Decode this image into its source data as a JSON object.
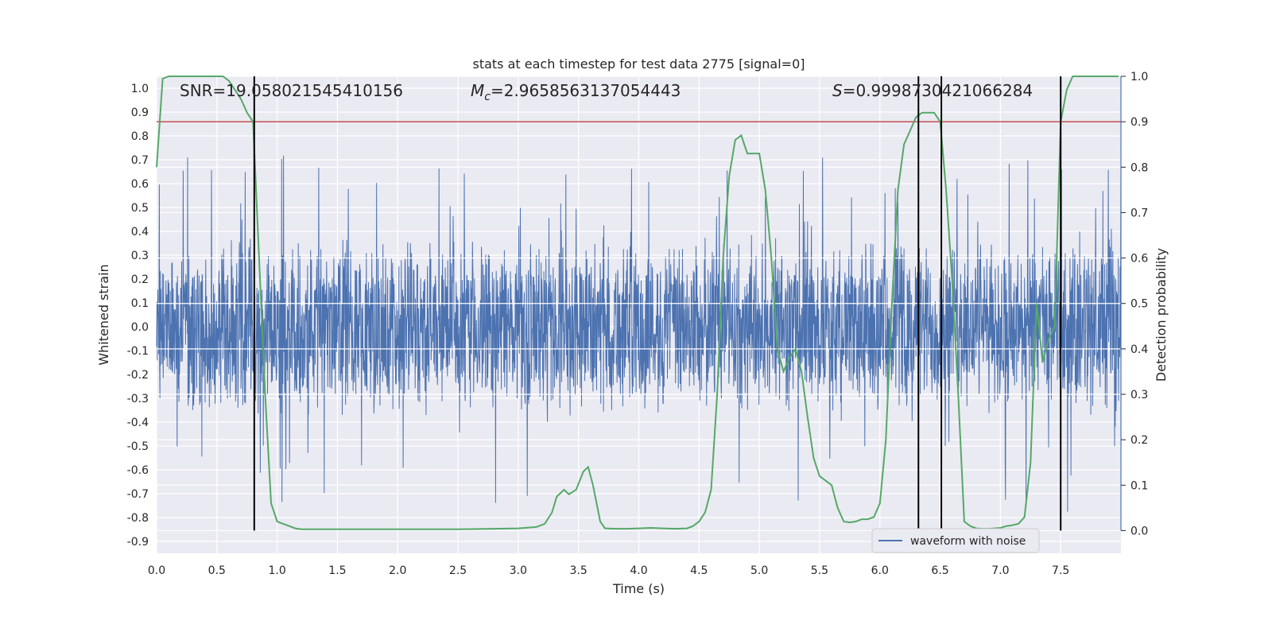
{
  "chart_data": {
    "type": "line",
    "title": "stats at each timestep for test data 2775 [signal=0]",
    "xlabel": "Time (s)",
    "ylabel": "Whitened strain",
    "ylabel_right": "Detection probability",
    "xlim": [
      0.0,
      8.0
    ],
    "ylim": [
      -0.95,
      1.05
    ],
    "ylim_right": [
      -0.05,
      1.0
    ],
    "x_ticks": [
      "0.0",
      "0.5",
      "1.0",
      "1.5",
      "2.0",
      "2.5",
      "3.0",
      "3.5",
      "4.0",
      "4.5",
      "5.0",
      "5.5",
      "6.0",
      "6.5",
      "7.0",
      "7.5"
    ],
    "x_tick_values": [
      0.0,
      0.5,
      1.0,
      1.5,
      2.0,
      2.5,
      3.0,
      3.5,
      4.0,
      4.5,
      5.0,
      5.5,
      6.0,
      6.5,
      7.0,
      7.5
    ],
    "y_ticks": [
      "1.0",
      "0.9",
      "0.8",
      "0.7",
      "0.6",
      "0.5",
      "0.4",
      "0.3",
      "0.2",
      "0.1",
      "0.0",
      "-0.1",
      "-0.2",
      "-0.3",
      "-0.4",
      "-0.5",
      "-0.6",
      "-0.7",
      "-0.8",
      "-0.9"
    ],
    "y_tick_values": [
      1.0,
      0.9,
      0.8,
      0.7,
      0.6,
      0.5,
      0.4,
      0.3,
      0.2,
      0.1,
      0.0,
      -0.1,
      -0.2,
      -0.3,
      -0.4,
      -0.5,
      -0.6,
      -0.7,
      -0.8,
      -0.9
    ],
    "y_right_ticks": [
      "1.0",
      "0.9",
      "0.8",
      "0.7",
      "0.6",
      "0.5",
      "0.4",
      "0.3",
      "0.2",
      "0.1",
      "0.0"
    ],
    "y_right_tick_values": [
      1.0,
      0.9,
      0.8,
      0.7,
      0.6,
      0.5,
      0.4,
      0.3,
      0.2,
      0.1,
      0.0
    ],
    "annotations": {
      "snr": "SNR=19.058021545410156",
      "mc": "=2.9658563137054443",
      "s": "=0.9998730421066284"
    },
    "legend": {
      "label": "waveform with noise",
      "placement": "lower-right"
    },
    "grid": true,
    "colors": {
      "waveform": "#4c72b0",
      "probability": "#55a868",
      "threshold": "#c44e52",
      "crossing": "#000000",
      "background": "#eaeaf2",
      "grid": "#ffffff"
    },
    "threshold": 0.9,
    "crossings": [
      0.81,
      6.32,
      6.51,
      7.5
    ],
    "series": [
      {
        "name": "waveform with noise",
        "noise_amplitude": 0.3,
        "peak_upper": 0.81,
        "peak_lower": -0.85
      },
      {
        "axis": "right",
        "x": [
          0.0,
          0.05,
          0.1,
          0.2,
          0.3,
          0.4,
          0.5,
          0.55,
          0.6,
          0.65,
          0.7,
          0.75,
          0.8,
          0.85,
          0.9,
          0.95,
          1.0,
          1.05,
          1.1,
          1.15,
          1.2,
          1.5,
          2.0,
          2.2,
          2.5,
          2.8,
          3.0,
          3.15,
          3.22,
          3.28,
          3.32,
          3.38,
          3.42,
          3.48,
          3.54,
          3.58,
          3.62,
          3.68,
          3.72,
          3.8,
          3.9,
          4.0,
          4.1,
          4.2,
          4.3,
          4.4,
          4.45,
          4.5,
          4.55,
          4.6,
          4.65,
          4.7,
          4.75,
          4.8,
          4.85,
          4.9,
          4.95,
          5.0,
          5.05,
          5.1,
          5.15,
          5.2,
          5.25,
          5.3,
          5.35,
          5.4,
          5.45,
          5.5,
          5.55,
          5.6,
          5.65,
          5.7,
          5.75,
          5.8,
          5.85,
          5.9,
          5.95,
          6.0,
          6.05,
          6.1,
          6.15,
          6.2,
          6.25,
          6.3,
          6.35,
          6.4,
          6.45,
          6.5,
          6.55,
          6.6,
          6.65,
          6.7,
          6.75,
          6.8,
          6.85,
          6.9,
          6.95,
          7.0,
          7.05,
          7.1,
          7.15,
          7.2,
          7.25,
          7.3,
          7.35,
          7.4,
          7.45,
          7.5,
          7.55,
          7.6,
          7.65,
          7.7,
          7.8,
          7.9,
          7.98
        ],
        "values": [
          0.8,
          0.995,
          1.0,
          1.0,
          1.0,
          1.0,
          1.0,
          1.0,
          0.99,
          0.97,
          0.95,
          0.92,
          0.9,
          0.6,
          0.3,
          0.06,
          0.02,
          0.015,
          0.01,
          0.005,
          0.003,
          0.003,
          0.003,
          0.003,
          0.003,
          0.004,
          0.005,
          0.008,
          0.015,
          0.04,
          0.075,
          0.09,
          0.08,
          0.09,
          0.13,
          0.14,
          0.1,
          0.02,
          0.005,
          0.004,
          0.004,
          0.005,
          0.006,
          0.005,
          0.004,
          0.005,
          0.01,
          0.02,
          0.04,
          0.09,
          0.3,
          0.6,
          0.78,
          0.86,
          0.87,
          0.83,
          0.83,
          0.83,
          0.75,
          0.6,
          0.4,
          0.35,
          0.38,
          0.4,
          0.35,
          0.25,
          0.16,
          0.12,
          0.11,
          0.1,
          0.05,
          0.02,
          0.018,
          0.02,
          0.025,
          0.025,
          0.03,
          0.06,
          0.2,
          0.5,
          0.75,
          0.85,
          0.88,
          0.91,
          0.92,
          0.92,
          0.92,
          0.9,
          0.75,
          0.55,
          0.3,
          0.02,
          0.01,
          0.005,
          0.004,
          0.004,
          0.005,
          0.006,
          0.01,
          0.012,
          0.015,
          0.03,
          0.15,
          0.5,
          0.37,
          0.42,
          0.45,
          0.9,
          0.97,
          1.0,
          1.0,
          1.0,
          1.0,
          1.0,
          1.0
        ]
      }
    ]
  }
}
